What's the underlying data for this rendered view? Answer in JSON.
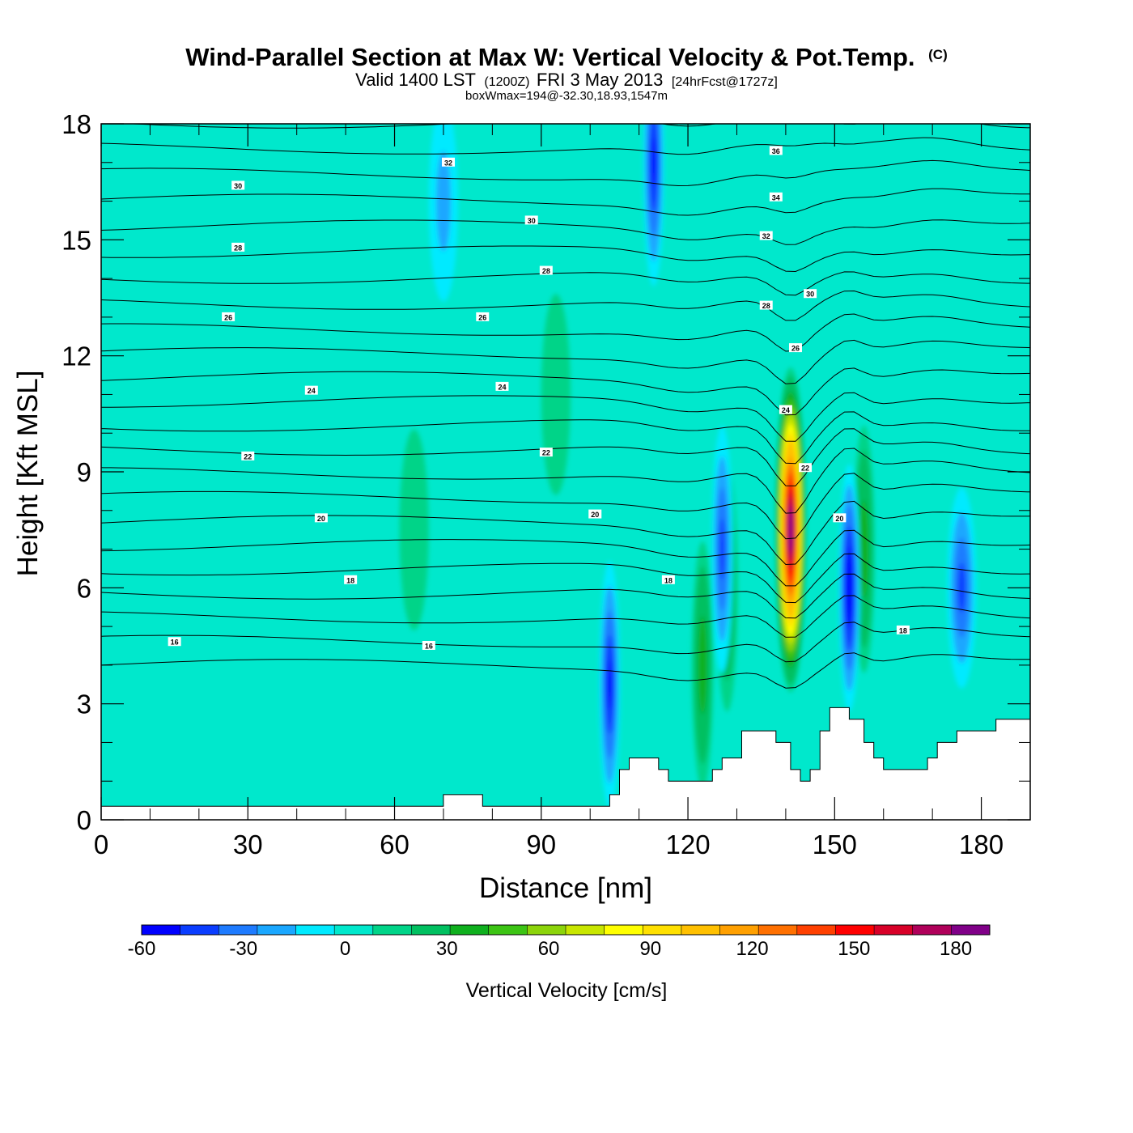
{
  "chart_data": {
    "type": "heatmap",
    "title": "Wind-Parallel Section at Max W: Vertical Velocity & Pot.Temp.",
    "title_mark": "(C)",
    "subtitle": {
      "valid": "Valid 1400 LST",
      "zulu": "(1200Z)",
      "date": "FRI 3 May 2013",
      "forecast": "[24hrFcst@1727z]"
    },
    "annotation": "boxWmax=194@-32.30,18.93,1547m",
    "xlabel": "Distance [nm]",
    "ylabel": "Height [Kft MSL]",
    "xlim": [
      0,
      190
    ],
    "ylim": [
      0,
      18
    ],
    "xticks": [
      0,
      30,
      60,
      90,
      120,
      150,
      180
    ],
    "yticks": [
      0,
      3,
      6,
      9,
      12,
      15,
      18
    ],
    "colorbar": {
      "title": "Vertical Velocity [cm/s]",
      "range": [
        -60,
        190
      ],
      "ticks": [
        -60,
        -30,
        0,
        30,
        60,
        90,
        120,
        150,
        180
      ],
      "colors": [
        "#0000ff",
        "#0a3dff",
        "#1e7bff",
        "#1aa7ff",
        "#00eaff",
        "#00e8cc",
        "#00d488",
        "#00c060",
        "#0fb01e",
        "#3cc414",
        "#8cd40a",
        "#c8e600",
        "#ffff00",
        "#ffe000",
        "#ffc000",
        "#ffa000",
        "#ff7000",
        "#ff4000",
        "#ff0000",
        "#d80028",
        "#b0005a",
        "#800088"
      ]
    },
    "vertical_velocity_features": [
      {
        "kind": "updraft",
        "x": 141,
        "y": 7.5,
        "peak": 194
      },
      {
        "kind": "updraft",
        "x": 128,
        "y": 6,
        "peak": 30
      },
      {
        "kind": "updraft",
        "x": 123,
        "y": 4,
        "peak": 40
      },
      {
        "kind": "updraft",
        "x": 156,
        "y": 7,
        "peak": 35
      },
      {
        "kind": "updraft",
        "x": 64,
        "y": 7.5,
        "peak": 15
      },
      {
        "kind": "updraft",
        "x": 93,
        "y": 11,
        "peak": 15
      },
      {
        "kind": "downdraft",
        "x": 153,
        "y": 6,
        "peak": -45
      },
      {
        "kind": "downdraft",
        "x": 113,
        "y": 17,
        "peak": -40
      },
      {
        "kind": "downdraft",
        "x": 104,
        "y": 3.5,
        "peak": -35
      },
      {
        "kind": "downdraft",
        "x": 127,
        "y": 7,
        "peak": -30
      },
      {
        "kind": "downdraft",
        "x": 176,
        "y": 6,
        "peak": -25
      },
      {
        "kind": "downdraft",
        "x": 70,
        "y": 16,
        "peak": -12
      }
    ],
    "theta_contour_labels": [
      {
        "value": "36",
        "x": 138,
        "y": 17.3
      },
      {
        "value": "34",
        "x": 138,
        "y": 16.1
      },
      {
        "value": "32",
        "x": 71,
        "y": 17.0
      },
      {
        "value": "32",
        "x": 136,
        "y": 15.1
      },
      {
        "value": "30",
        "x": 28,
        "y": 16.4
      },
      {
        "value": "30",
        "x": 88,
        "y": 15.5
      },
      {
        "value": "30",
        "x": 145,
        "y": 13.6
      },
      {
        "value": "28",
        "x": 28,
        "y": 14.8
      },
      {
        "value": "28",
        "x": 91,
        "y": 14.2
      },
      {
        "value": "28",
        "x": 136,
        "y": 13.3
      },
      {
        "value": "26",
        "x": 26,
        "y": 13.0
      },
      {
        "value": "26",
        "x": 78,
        "y": 13.0
      },
      {
        "value": "26",
        "x": 142,
        "y": 12.2
      },
      {
        "value": "24",
        "x": 43,
        "y": 11.1
      },
      {
        "value": "24",
        "x": 82,
        "y": 11.2
      },
      {
        "value": "24",
        "x": 140,
        "y": 10.6
      },
      {
        "value": "22",
        "x": 30,
        "y": 9.4
      },
      {
        "value": "22",
        "x": 91,
        "y": 9.5
      },
      {
        "value": "22",
        "x": 144,
        "y": 9.1
      },
      {
        "value": "20",
        "x": 45,
        "y": 7.8
      },
      {
        "value": "20",
        "x": 101,
        "y": 7.9
      },
      {
        "value": "20",
        "x": 151,
        "y": 7.8
      },
      {
        "value": "18",
        "x": 51,
        "y": 6.2
      },
      {
        "value": "18",
        "x": 116,
        "y": 6.2
      },
      {
        "value": "18",
        "x": 164,
        "y": 4.9
      },
      {
        "value": "16",
        "x": 15,
        "y": 4.6
      },
      {
        "value": "16",
        "x": 67,
        "y": 4.5
      }
    ],
    "terrain_top": [
      [
        0,
        0.35
      ],
      [
        70,
        0.35
      ],
      [
        70,
        0.65
      ],
      [
        78,
        0.65
      ],
      [
        78,
        0.35
      ],
      [
        104,
        0.35
      ],
      [
        104,
        0.65
      ],
      [
        106,
        0.65
      ],
      [
        106,
        1.3
      ],
      [
        108,
        1.3
      ],
      [
        108,
        1.6
      ],
      [
        114,
        1.6
      ],
      [
        114,
        1.3
      ],
      [
        116,
        1.3
      ],
      [
        116,
        1.0
      ],
      [
        125,
        1.0
      ],
      [
        125,
        1.3
      ],
      [
        127,
        1.3
      ],
      [
        127,
        1.6
      ],
      [
        131,
        1.6
      ],
      [
        131,
        2.3
      ],
      [
        138,
        2.3
      ],
      [
        138,
        2.0
      ],
      [
        141,
        2.0
      ],
      [
        141,
        1.3
      ],
      [
        143,
        1.3
      ],
      [
        143,
        1.0
      ],
      [
        145,
        1.0
      ],
      [
        145,
        1.3
      ],
      [
        147,
        1.3
      ],
      [
        147,
        2.3
      ],
      [
        149,
        2.3
      ],
      [
        149,
        2.9
      ],
      [
        153,
        2.9
      ],
      [
        153,
        2.6
      ],
      [
        156,
        2.6
      ],
      [
        156,
        2.0
      ],
      [
        158,
        2.0
      ],
      [
        158,
        1.6
      ],
      [
        160,
        1.6
      ],
      [
        160,
        1.3
      ],
      [
        169,
        1.3
      ],
      [
        169,
        1.6
      ],
      [
        171,
        1.6
      ],
      [
        171,
        2.0
      ],
      [
        175,
        2.0
      ],
      [
        175,
        2.3
      ],
      [
        183,
        2.3
      ],
      [
        183,
        2.6
      ],
      [
        190,
        2.6
      ]
    ]
  }
}
